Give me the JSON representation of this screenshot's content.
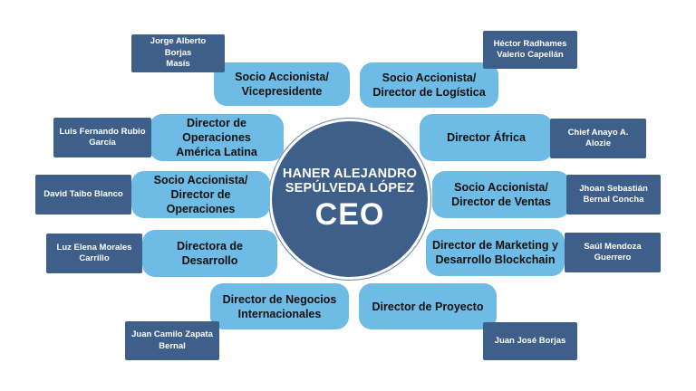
{
  "colors": {
    "dark_blue": "#3f5f8b",
    "light_blue": "#6ebbe5",
    "background": "#ffffff"
  },
  "ceo": {
    "name": "HANER ALEJANDRO\nSEPÚLVEDA LÓPEZ",
    "title": "CEO"
  },
  "roles": [
    {
      "role": "Socio Accionista/\nVicepresidente",
      "person": "Jorge Alberto Borjas\nMasís"
    },
    {
      "role": "Socio Accionista/\nDirector de Logística",
      "person": "Héctor Radhames\nValerio Capellán"
    },
    {
      "role": "Director de Operaciones\nAmérica Latina",
      "person": "Luis Fernando Rubio\nGarcía"
    },
    {
      "role": "Director África",
      "person": "Chief Anayo A.\nAlozie"
    },
    {
      "role": "Socio Accionista/\nDirector de Operaciones",
      "person": "David Taibo Blanco"
    },
    {
      "role": "Socio Accionista/\nDirector de Ventas",
      "person": "Jhoan Sebastián\nBernal Concha"
    },
    {
      "role": "Directora de Desarrollo",
      "person": "Luz Elena Morales\nCarrillo"
    },
    {
      "role": "Director de Marketing y\nDesarrollo Blockchain",
      "person": "Saúl Mendoza\nGuerrero"
    },
    {
      "role": "Director de Negocios\nInternacionales",
      "person": "Juan Camilo Zapata\nBernal"
    },
    {
      "role": "Director de Proyecto",
      "person": "Juan José Borjas"
    }
  ]
}
